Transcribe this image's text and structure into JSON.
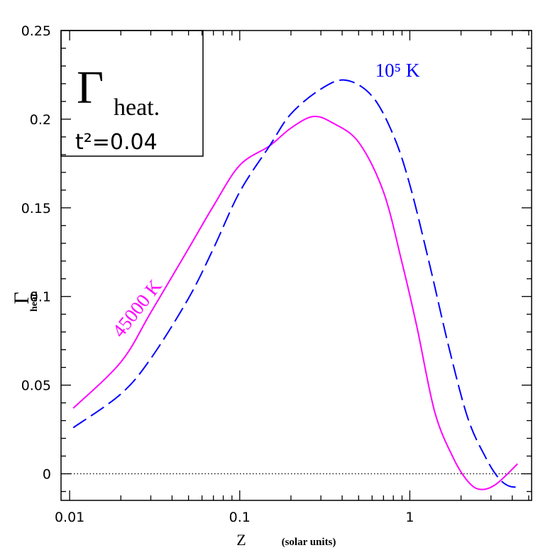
{
  "chart_data": {
    "type": "line",
    "x_label": "Z",
    "x_label_note": "(solar units)",
    "y_label": "Γ",
    "y_label_sub": "heat.",
    "inset": {
      "symbol": "Γ",
      "subscript": "heat.",
      "text": "t²=0.04"
    },
    "xscale": "log",
    "xlim": [
      0.0089,
      5.2
    ],
    "ylim": [
      -0.015,
      0.25
    ],
    "xticks": [
      0.01,
      0.1,
      1
    ],
    "yticks": [
      0,
      0.05,
      0.1,
      0.15,
      0.2,
      0.25
    ],
    "zero_line": true,
    "series": [
      {
        "name": "45000 K",
        "color": "#ff00ff",
        "dashed": false,
        "x": [
          0.0105,
          0.02,
          0.03,
          0.05,
          0.07,
          0.1,
          0.15,
          0.2,
          0.27,
          0.35,
          0.5,
          0.7,
          0.9,
          1.1,
          1.4,
          1.8,
          2.2,
          2.6,
          3.2,
          4.3
        ],
        "values": [
          0.037,
          0.063,
          0.091,
          0.127,
          0.151,
          0.174,
          0.185,
          0.195,
          0.2015,
          0.198,
          0.187,
          0.159,
          0.119,
          0.083,
          0.035,
          0.009,
          -0.0044,
          -0.0088,
          -0.006,
          0.0056
        ]
      },
      {
        "name": "10⁵ K",
        "color": "#0000ff",
        "dashed": true,
        "x": [
          0.0105,
          0.02,
          0.03,
          0.05,
          0.07,
          0.1,
          0.15,
          0.2,
          0.3,
          0.42,
          0.6,
          0.8,
          1.0,
          1.3,
          1.7,
          2.2,
          2.8,
          3.3,
          3.8,
          4.4
        ],
        "values": [
          0.026,
          0.045,
          0.065,
          0.099,
          0.127,
          0.159,
          0.185,
          0.203,
          0.217,
          0.222,
          0.213,
          0.191,
          0.163,
          0.119,
          0.071,
          0.031,
          0.009,
          -0.002,
          -0.0068,
          -0.0076
        ]
      }
    ]
  }
}
